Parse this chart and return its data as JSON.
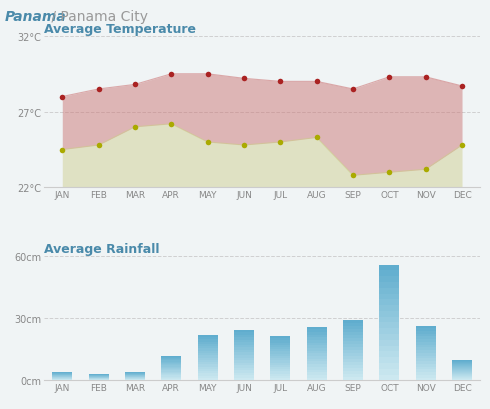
{
  "title_bold": "Panama",
  "title_light": " / Panama City",
  "title_temp": "Average Temperature",
  "title_rain": "Average Rainfall",
  "months": [
    "JAN",
    "FEB",
    "MAR",
    "APR",
    "MAY",
    "JUN",
    "JUL",
    "AUG",
    "SEP",
    "OCT",
    "NOV",
    "DEC"
  ],
  "max_temp": [
    28.0,
    28.5,
    28.8,
    29.5,
    29.5,
    29.2,
    29.0,
    29.0,
    28.5,
    29.3,
    29.3,
    28.7
  ],
  "min_temp": [
    24.5,
    24.8,
    26.0,
    26.2,
    25.0,
    24.8,
    25.0,
    25.3,
    22.8,
    23.0,
    23.2,
    24.8
  ],
  "rainfall": [
    4.0,
    3.0,
    4.0,
    12.0,
    22.0,
    24.5,
    21.5,
    26.0,
    29.0,
    56.0,
    26.5,
    10.0
  ],
  "temp_ylim": [
    22,
    32
  ],
  "temp_yticks": [
    22,
    27,
    32
  ],
  "rain_ylim": [
    0,
    60
  ],
  "rain_yticks": [
    0,
    30,
    60
  ],
  "bg_color": "#f0f4f5",
  "title_bold_color": "#4a8aaa",
  "title_light_color": "#999999",
  "section_title_color": "#4a8aaa",
  "max_temp_dot_color": "#aa2222",
  "min_temp_dot_color": "#aaaa00",
  "fill_max_color": "#cc7777",
  "fill_min_color": "#cccc88",
  "bar_color_top": "#5aaacc",
  "bar_color_bottom": "#cce8f0",
  "grid_color": "#cccccc",
  "tick_color": "#888888",
  "legend_max_color": "#aa2222",
  "legend_min_color": "#aaaa00"
}
